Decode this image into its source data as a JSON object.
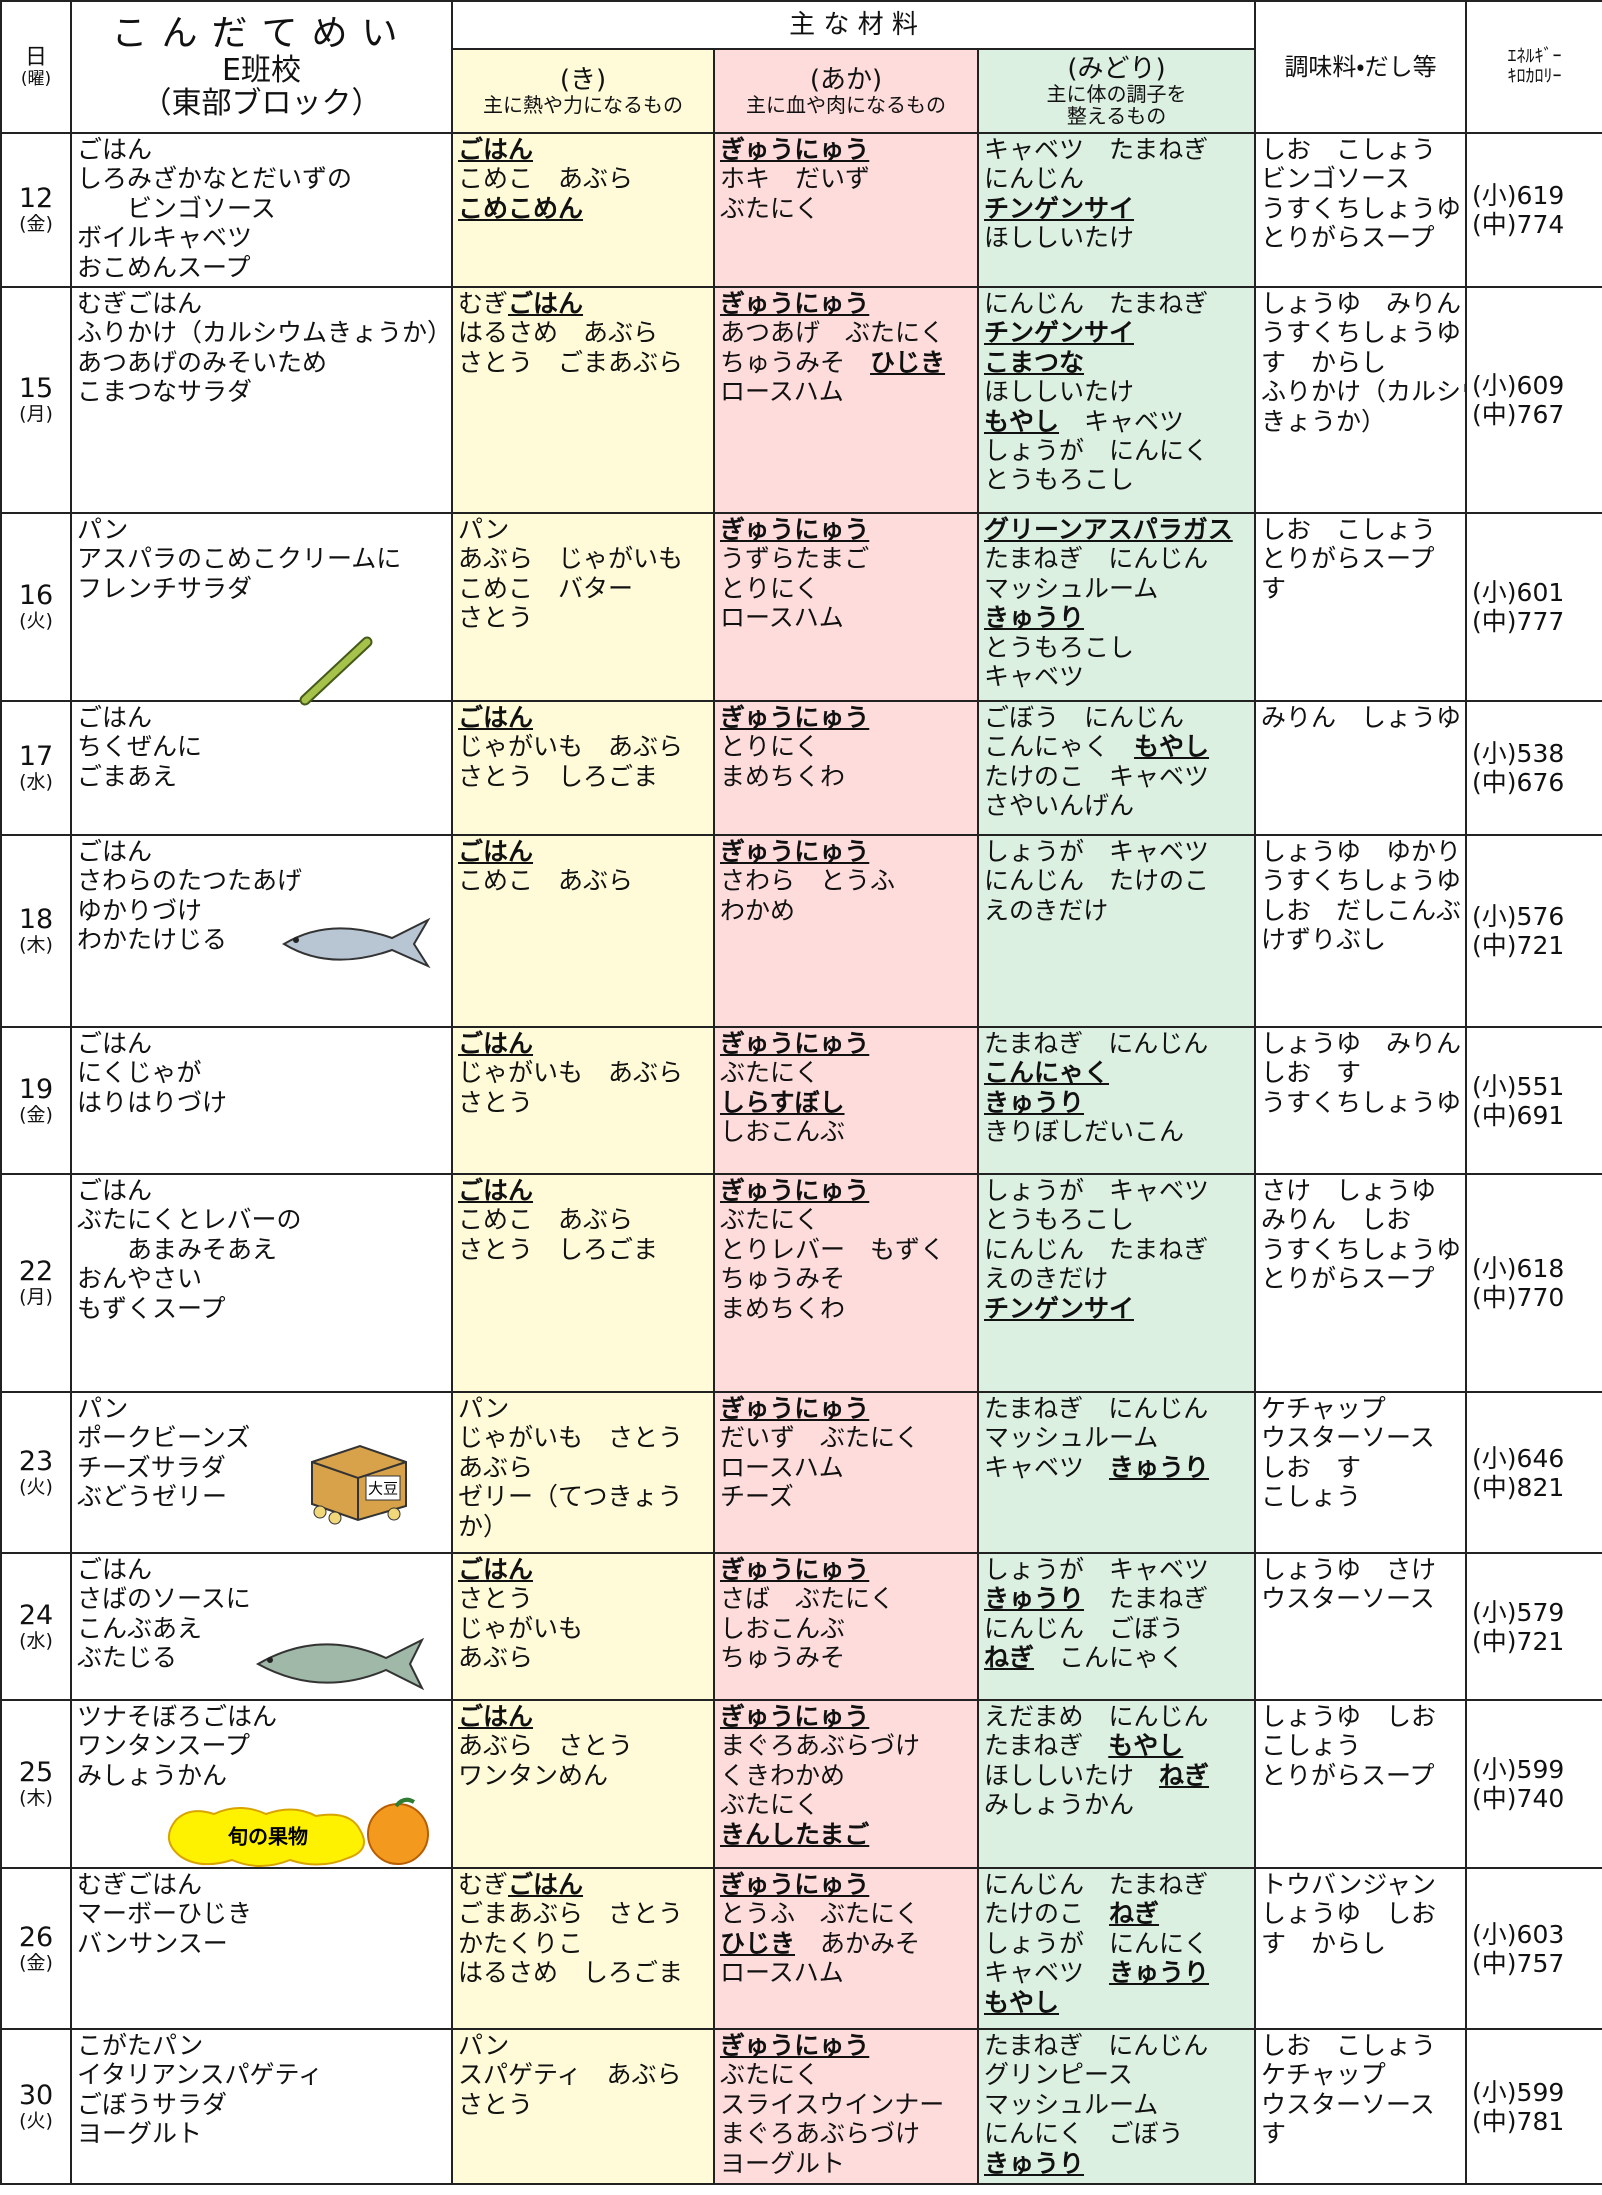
{
  "header": {
    "day": "日",
    "weekday": "(曜)",
    "title": "こんだてめい",
    "school": "E班校",
    "block": "（東部ブロック）",
    "materials": "主 な 材 料",
    "ki": "(き)",
    "ki_desc": "主に熱や力になるもの",
    "aka": "(あか)",
    "aka_desc": "主に血や肉になるもの",
    "midori": "(みどり)",
    "midori_desc": [
      "主に体の調子を",
      "整えるもの"
    ],
    "seasoning": "調味料・だし等",
    "energy": [
      "ｴﾈﾙｷﾞｰ",
      "ｷﾛｶﾛﾘｰ"
    ]
  },
  "illustration_text": {
    "box": "大豆",
    "fruit_badge": "旬の果物"
  },
  "rows": [
    {
      "day": "12",
      "weekday": "(金)",
      "menu": [
        "ごはん",
        "しろみざかなとだいずの",
        "　　ビンゴソース",
        "ボイルキャベツ",
        "おこめんスープ"
      ],
      "ki": [
        [
          {
            "text": "ごはん",
            "bold": true
          }
        ],
        "こめこ　あぶら",
        [
          {
            "text": "こめこめん",
            "bold": true
          }
        ]
      ],
      "aka": [
        [
          {
            "text": "ぎゅうにゅう",
            "bold": true
          }
        ],
        "ホキ　だいず",
        "ぶたにく"
      ],
      "midori": [
        "キャベツ　たまねぎ",
        "にんじん",
        [
          {
            "text": "チンゲンサイ",
            "bold": true
          }
        ],
        "ほししいたけ"
      ],
      "seasoning": [
        "しお　こしょう",
        "ビンゴソース",
        "うすくちしょうゆ",
        "とりがらスープ"
      ],
      "energy": [
        "(小)619",
        "(中)774"
      ]
    },
    {
      "day": "15",
      "weekday": "(月)",
      "menu": [
        "むぎごはん",
        "ふりかけ（カルシウムきょうか）",
        "あつあげのみそいため",
        "こまつなサラダ"
      ],
      "ki": [
        [
          "むぎ",
          {
            "text": "ごはん",
            "bold": true
          }
        ],
        "はるさめ　あぶら",
        "さとう　ごまあぶら"
      ],
      "aka": [
        [
          {
            "text": "ぎゅうにゅう",
            "bold": true
          }
        ],
        "あつあげ　ぶたにく",
        [
          "ちゅうみそ　",
          {
            "text": "ひじき",
            "bold": true
          }
        ],
        "ロースハム"
      ],
      "midori": [
        "にんじん　たまねぎ",
        [
          {
            "text": "チンゲンサイ",
            "bold": true
          }
        ],
        [
          {
            "text": "こまつな",
            "bold": true
          }
        ],
        "ほししいたけ",
        [
          {
            "text": "もやし",
            "bold": true
          },
          "　キャベツ"
        ],
        "しょうが　にんにく",
        "とうもろこし"
      ],
      "seasoning": [
        "しょうゆ　みりん",
        "うすくちしょうゆ",
        "す　からし",
        "ふりかけ（カルシウム",
        "きょうか）"
      ],
      "energy": [
        "(小)609",
        "(中)767"
      ]
    },
    {
      "day": "16",
      "weekday": "(火)",
      "menu": [
        "パン",
        "アスパラのこめこクリームに",
        "フレンチサラダ"
      ],
      "ki": [
        "パン",
        "あぶら　じゃがいも",
        "こめこ　バター",
        "さとう"
      ],
      "aka": [
        [
          {
            "text": "ぎゅうにゅう",
            "bold": true
          }
        ],
        "うずらたまご",
        "とりにく",
        "ロースハム"
      ],
      "midori": [
        [
          {
            "text": "グリーンアスパラガス",
            "bold": true
          }
        ],
        "たまねぎ　にんじん",
        "マッシュルーム",
        [
          {
            "text": "きゅうり",
            "bold": true
          }
        ],
        "とうもろこし",
        "キャベツ"
      ],
      "seasoning": [
        "しお　こしょう",
        "とりがらスープ",
        "す"
      ],
      "energy": [
        "(小)601",
        "(中)777"
      ]
    },
    {
      "day": "17",
      "weekday": "(水)",
      "menu": [
        "ごはん",
        "ちくぜんに",
        "ごまあえ"
      ],
      "ki": [
        [
          {
            "text": "ごはん",
            "bold": true
          }
        ],
        "じゃがいも　あぶら",
        "さとう　しろごま"
      ],
      "aka": [
        [
          {
            "text": "ぎゅうにゅう",
            "bold": true
          }
        ],
        "とりにく",
        "まめちくわ"
      ],
      "midori": [
        "ごぼう　にんじん",
        [
          "こんにゃく　",
          {
            "text": "もやし",
            "bold": true
          }
        ],
        "たけのこ　キャベツ",
        "さやいんげん"
      ],
      "seasoning": [
        "みりん　しょうゆ"
      ],
      "energy": [
        "(小)538",
        "(中)676"
      ]
    },
    {
      "day": "18",
      "weekday": "(木)",
      "menu": [
        "ごはん",
        "さわらのたつたあげ",
        "ゆかりづけ",
        "わかたけじる"
      ],
      "ki": [
        [
          {
            "text": "ごはん",
            "bold": true
          }
        ],
        "こめこ　あぶら"
      ],
      "aka": [
        [
          {
            "text": "ぎゅうにゅう",
            "bold": true
          }
        ],
        "さわら　とうふ",
        "わかめ"
      ],
      "midori": [
        "しょうが　キャベツ",
        "にんじん　たけのこ",
        "えのきだけ"
      ],
      "seasoning": [
        "しょうゆ　ゆかり",
        "うすくちしょうゆ",
        "しお　だしこんぶ",
        "けずりぶし"
      ],
      "energy": [
        "(小)576",
        "(中)721"
      ]
    },
    {
      "day": "19",
      "weekday": "(金)",
      "menu": [
        "ごはん",
        "にくじゃが",
        "はりはりづけ"
      ],
      "ki": [
        [
          {
            "text": "ごはん",
            "bold": true
          }
        ],
        "じゃがいも　あぶら",
        "さとう"
      ],
      "aka": [
        [
          {
            "text": "ぎゅうにゅう",
            "bold": true
          }
        ],
        "ぶたにく",
        [
          {
            "text": "しらすぼし",
            "bold": true
          }
        ],
        "しおこんぶ"
      ],
      "midori": [
        "たまねぎ　にんじん",
        [
          {
            "text": "こんにゃく",
            "bold": true
          }
        ],
        [
          {
            "text": "きゅうり",
            "bold": true
          }
        ],
        "きりぼしだいこん"
      ],
      "seasoning": [
        "しょうゆ　みりん",
        "しお　す",
        "うすくちしょうゆ"
      ],
      "energy": [
        "(小)551",
        "(中)691"
      ]
    },
    {
      "day": "22",
      "weekday": "(月)",
      "menu": [
        "ごはん",
        "ぶたにくとレバーの",
        "　　あまみそあえ",
        "おんやさい",
        "もずくスープ"
      ],
      "ki": [
        [
          {
            "text": "ごはん",
            "bold": true
          }
        ],
        "こめこ　あぶら",
        "さとう　しろごま"
      ],
      "aka": [
        [
          {
            "text": "ぎゅうにゅう",
            "bold": true
          }
        ],
        "ぶたにく",
        "とりレバー　もずく",
        "ちゅうみそ",
        "まめちくわ"
      ],
      "midori": [
        "しょうが　キャベツ",
        "とうもろこし",
        "にんじん　たまねぎ",
        "えのきだけ",
        [
          {
            "text": "チンゲンサイ",
            "bold": true
          }
        ]
      ],
      "seasoning": [
        "さけ　しょうゆ",
        "みりん　しお",
        "うすくちしょうゆ",
        "とりがらスープ"
      ],
      "energy": [
        "(小)618",
        "(中)770"
      ]
    },
    {
      "day": "23",
      "weekday": "(火)",
      "menu": [
        "パン",
        "ポークビーンズ",
        "チーズサラダ",
        "ぶどうゼリー"
      ],
      "ki": [
        "パン",
        "じゃがいも　さとう",
        "あぶら",
        "ゼリー（てつきょう",
        "か）"
      ],
      "aka": [
        [
          {
            "text": "ぎゅうにゅう",
            "bold": true
          }
        ],
        "だいず　ぶたにく",
        "ロースハム",
        "チーズ"
      ],
      "midori": [
        "たまねぎ　にんじん",
        "マッシュルーム",
        [
          "キャベツ　",
          {
            "text": "きゅうり",
            "bold": true
          }
        ]
      ],
      "seasoning": [
        "ケチャップ",
        "ウスターソース",
        "しお　す",
        "こしょう"
      ],
      "energy": [
        "(小)646",
        "(中)821"
      ]
    },
    {
      "day": "24",
      "weekday": "(水)",
      "menu": [
        "ごはん",
        "さばのソースに",
        "こんぶあえ",
        "ぶたじる"
      ],
      "ki": [
        [
          {
            "text": "ごはん",
            "bold": true
          }
        ],
        "さとう",
        "じゃがいも",
        "あぶら"
      ],
      "aka": [
        [
          {
            "text": "ぎゅうにゅう",
            "bold": true
          }
        ],
        "さば　ぶたにく",
        "しおこんぶ",
        "ちゅうみそ"
      ],
      "midori": [
        "しょうが　キャベツ",
        [
          {
            "text": "きゅうり",
            "bold": true
          },
          "　たまねぎ"
        ],
        "にんじん　ごぼう",
        [
          {
            "text": "ねぎ",
            "bold": true
          },
          "　こんにゃく"
        ]
      ],
      "seasoning": [
        "しょうゆ　さけ",
        "ウスターソース"
      ],
      "energy": [
        "(小)579",
        "(中)721"
      ]
    },
    {
      "day": "25",
      "weekday": "(木)",
      "menu": [
        "ツナそぼろごはん",
        "ワンタンスープ",
        "みしょうかん"
      ],
      "ki": [
        [
          {
            "text": "ごはん",
            "bold": true
          }
        ],
        "あぶら　さとう",
        "ワンタンめん"
      ],
      "aka": [
        [
          {
            "text": "ぎゅうにゅう",
            "bold": true
          }
        ],
        "まぐろあぶらづけ",
        "くきわかめ",
        "ぶたにく",
        [
          {
            "text": "きんしたまご",
            "bold": true
          }
        ]
      ],
      "midori": [
        "えだまめ　にんじん",
        [
          "たまねぎ　",
          {
            "text": "もやし",
            "bold": true
          }
        ],
        [
          "ほししいたけ　",
          {
            "text": "ねぎ",
            "bold": true
          }
        ],
        "みしょうかん"
      ],
      "seasoning": [
        "しょうゆ　しお",
        "こしょう",
        "とりがらスープ"
      ],
      "energy": [
        "(小)599",
        "(中)740"
      ]
    },
    {
      "day": "26",
      "weekday": "(金)",
      "menu": [
        "むぎごはん",
        "マーボーひじき",
        "バンサンスー"
      ],
      "ki": [
        [
          "むぎ",
          {
            "text": "ごはん",
            "bold": true
          }
        ],
        "ごまあぶら　さとう",
        "かたくりこ",
        "はるさめ　しろごま"
      ],
      "aka": [
        [
          {
            "text": "ぎゅうにゅう",
            "bold": true
          }
        ],
        "とうふ　ぶたにく",
        [
          {
            "text": "ひじき",
            "bold": true
          },
          "　あかみそ"
        ],
        "ロースハム"
      ],
      "midori": [
        "にんじん　たまねぎ",
        [
          "たけのこ　",
          {
            "text": "ねぎ",
            "bold": true
          }
        ],
        "しょうが　にんにく",
        [
          "キャベツ　",
          {
            "text": "きゅうり",
            "bold": true
          }
        ],
        [
          {
            "text": "もやし",
            "bold": true
          }
        ]
      ],
      "seasoning": [
        "トウバンジャン",
        "しょうゆ　しお",
        "す　からし"
      ],
      "energy": [
        "(小)603",
        "(中)757"
      ]
    },
    {
      "day": "30",
      "weekday": "(火)",
      "menu": [
        "こがたパン",
        "イタリアンスパゲティ",
        "ごぼうサラダ",
        "ヨーグルト"
      ],
      "ki": [
        "パン",
        "スパゲティ　あぶら",
        "さとう"
      ],
      "aka": [
        [
          {
            "text": "ぎゅうにゅう",
            "bold": true
          }
        ],
        "ぶたにく",
        "スライスウインナー",
        "まぐろあぶらづけ",
        "ヨーグルト"
      ],
      "midori": [
        "たまねぎ　にんじん",
        "グリンピース",
        "マッシュルーム",
        "にんにく　ごぼう",
        [
          {
            "text": "きゅうり",
            "bold": true
          }
        ]
      ],
      "seasoning": [
        "しお　こしょう",
        "ケチャップ",
        "ウスターソース",
        "す"
      ],
      "energy": [
        "(小)599",
        "(中)781"
      ]
    }
  ]
}
